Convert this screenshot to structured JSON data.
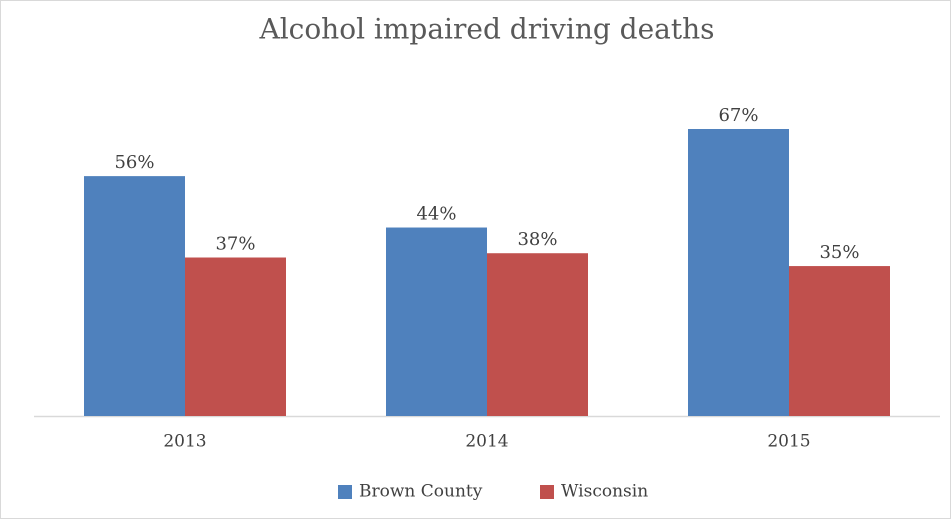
{
  "chart_data": {
    "type": "bar",
    "title": "Alcohol impaired driving deaths",
    "categories": [
      "2013",
      "2014",
      "2015"
    ],
    "series": [
      {
        "name": "Brown County",
        "color": "#4f81bd",
        "values": [
          56,
          44,
          67
        ],
        "value_labels": [
          "56%",
          "44%",
          "67%"
        ]
      },
      {
        "name": "Wisconsin",
        "color": "#c0504d",
        "values": [
          37,
          38,
          35
        ],
        "value_labels": [
          "37%",
          "38%",
          "35%"
        ]
      }
    ],
    "legend": "bottom"
  }
}
